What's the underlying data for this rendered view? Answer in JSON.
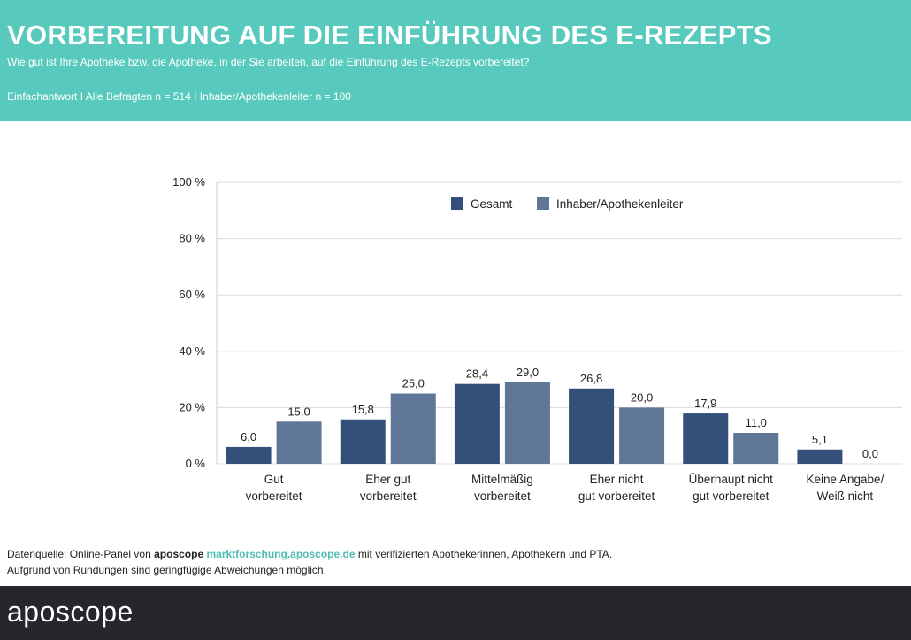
{
  "header": {
    "title": "VORBEREITUNG AUF DIE EINFÜHRUNG DES E-REZEPTS",
    "subtitle": "Wie gut ist Ihre Apotheke bzw. die Apotheke, in der Sie arbeiten, auf die Einführung des E-Rezepts vorbereitet?",
    "note": "Einfachantwort I Alle Befragten n = 514 I Inhaber/Apothekenleiter n = 100"
  },
  "colors": {
    "header_bg": "#58c9bd",
    "gesamt": "#34507a",
    "inhaber": "#5f7697",
    "footer_bg": "#26262b",
    "link": "#4fbdb2"
  },
  "chart_data": {
    "type": "bar",
    "title": "",
    "xlabel": "",
    "ylabel": "",
    "ylim": [
      0,
      100
    ],
    "yticks": [
      0,
      20,
      40,
      60,
      80,
      100
    ],
    "ytick_labels": [
      "0 %",
      "20 %",
      "40 %",
      "60 %",
      "80 %",
      "100 %"
    ],
    "legend_position": "top-right",
    "categories": [
      [
        "Gut",
        "vorbereitet"
      ],
      [
        "Eher gut",
        "vorbereitet"
      ],
      [
        "Mittelmäßig",
        "vorbereitet"
      ],
      [
        "Eher nicht",
        "gut vorbereitet"
      ],
      [
        "Überhaupt nicht",
        "gut vorbereitet"
      ],
      [
        "Keine Angabe/",
        "Weiß nicht"
      ]
    ],
    "series": [
      {
        "name": "Gesamt",
        "values": [
          6.0,
          15.8,
          28.4,
          26.8,
          17.9,
          5.1
        ],
        "labels": [
          "6,0",
          "15,8",
          "28,4",
          "26,8",
          "17,9",
          "5,1"
        ]
      },
      {
        "name": "Inhaber/Apothekenleiter",
        "values": [
          15.0,
          25.0,
          29.0,
          20.0,
          11.0,
          0.0
        ],
        "labels": [
          "15,0",
          "25,0",
          "29,0",
          "20,0",
          "11,0",
          "0,0"
        ]
      }
    ]
  },
  "footer": {
    "source_prefix": "Datenquelle: Online-Panel von",
    "source_brand": "aposcope",
    "source_link": "marktforschung.aposcope.de",
    "source_suffix": "mit verifizierten Apothekerinnen, Apothekern und PTA.",
    "rounding_note": "Aufgrund von Rundungen sind geringfügige Abweichungen möglich."
  },
  "brand": {
    "logo_text": "aposcope"
  }
}
